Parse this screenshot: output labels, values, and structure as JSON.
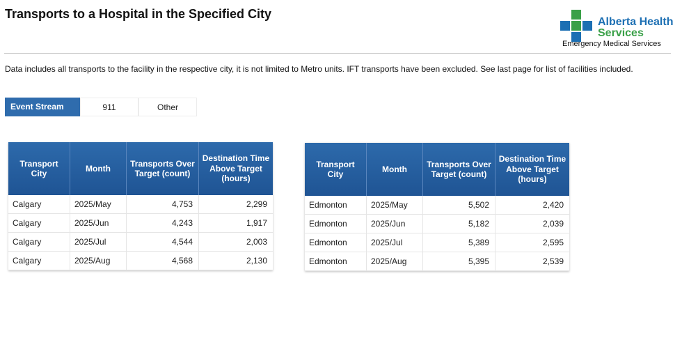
{
  "header": {
    "title": "Transports to a Hospital in the Specified City",
    "logo": {
      "line1": "Alberta Health",
      "line2": "Services",
      "subtitle": "Emergency Medical Services",
      "colors": {
        "blue": "#1c6fb3",
        "green": "#3aa048"
      }
    }
  },
  "note": "Data includes all transports to the facility in the respective city, it is not limited to Metro units.  IFT transports have been excluded. See last page for list of facilities included.",
  "filter": {
    "label": "Event Stream",
    "options": [
      "911",
      "Other"
    ]
  },
  "tables": [
    {
      "columns": [
        "Transport City",
        "Month",
        "Transports Over Target (count)",
        "Destination Time Above Target (hours)"
      ],
      "rows": [
        [
          "Calgary",
          "2025/May",
          "4,753",
          "2,299"
        ],
        [
          "Calgary",
          "2025/Jun",
          "4,243",
          "1,917"
        ],
        [
          "Calgary",
          "2025/Jul",
          "4,544",
          "2,003"
        ],
        [
          "Calgary",
          "2025/Aug",
          "4,568",
          "2,130"
        ]
      ]
    },
    {
      "columns": [
        "Transport City",
        "Month",
        "Transports Over Target (count)",
        "Destination Time Above Target (hours)"
      ],
      "rows": [
        [
          "Edmonton",
          "2025/May",
          "5,502",
          "2,420"
        ],
        [
          "Edmonton",
          "2025/Jun",
          "5,182",
          "2,039"
        ],
        [
          "Edmonton",
          "2025/Jul",
          "5,389",
          "2,595"
        ],
        [
          "Edmonton",
          "2025/Aug",
          "5,395",
          "2,539"
        ]
      ]
    }
  ],
  "colors": {
    "header_blue": "#2f6cad"
  }
}
